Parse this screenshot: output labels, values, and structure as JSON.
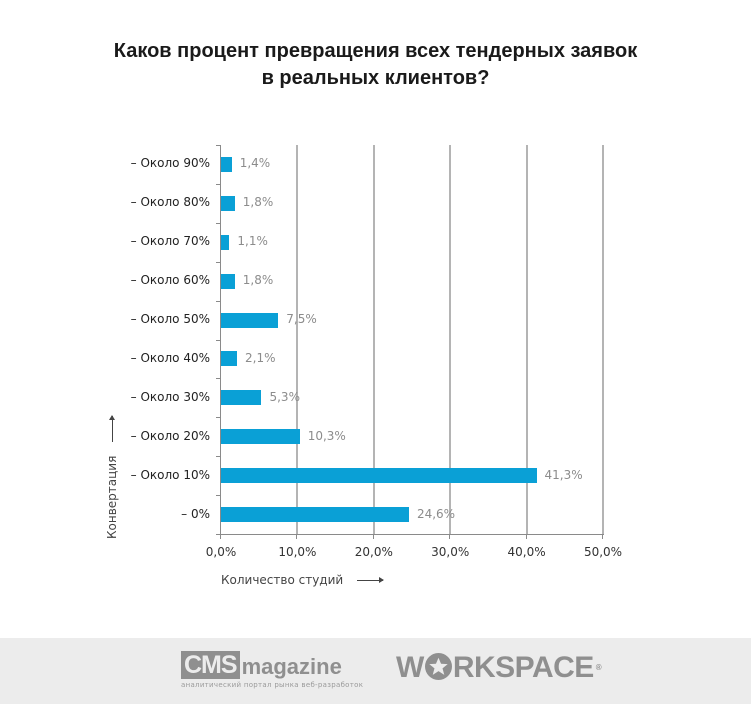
{
  "title_line1": "Каков процент превращения всех тендерных заявок",
  "title_line2": "в реальных клиентов?",
  "chart_data": {
    "type": "bar",
    "orientation": "horizontal",
    "title": "Каков процент превращения всех тендерных заявок в реальных клиентов?",
    "xlabel": "Количество студий",
    "ylabel": "Конвертация",
    "categories": [
      "– Около 90%",
      "– Около 80%",
      "– Около 70%",
      "– Около 60%",
      "– Около 50%",
      "– Около 40%",
      "– Около 30%",
      "– Около 20%",
      "– Около 10%",
      "– 0%"
    ],
    "values": [
      1.4,
      1.8,
      1.1,
      1.8,
      7.5,
      2.1,
      5.3,
      10.3,
      41.3,
      24.6
    ],
    "value_labels": [
      "1,4%",
      "1,8%",
      "1,1%",
      "1,8%",
      "7,5%",
      "2,1%",
      "5,3%",
      "10,3%",
      "41,3%",
      "24,6%"
    ],
    "xlim": [
      0,
      50
    ],
    "x_ticks": [
      "0,0%",
      "10,0%",
      "20,0%",
      "30,0%",
      "40,0%",
      "50,0%"
    ],
    "grid": "vertical",
    "bar_color": "#0aa0d6",
    "legend": null
  },
  "axis": {
    "x_title": "Количество студий",
    "y_title": "Конвертация"
  },
  "footer": {
    "cms_logo": "CMS",
    "cms_mag": "magazine",
    "cms_tagline": "аналитический портал рынка веб-разработок",
    "workspace_pre": "W",
    "workspace_post": "RKSPACE",
    "workspace_reg": "®"
  }
}
